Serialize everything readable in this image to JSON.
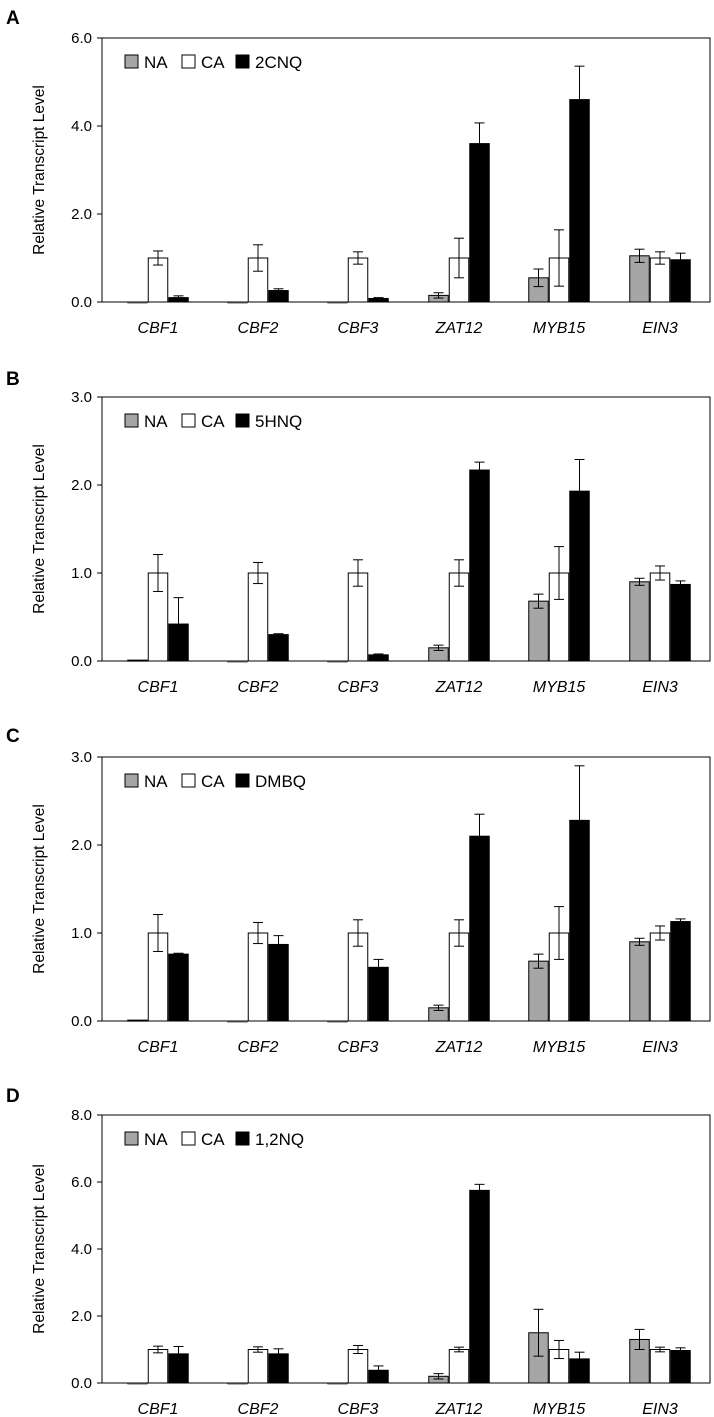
{
  "colors": {
    "NA": "#a6a6a6",
    "CA": "#ffffff",
    "treatment": "#000000",
    "axis": "#000000"
  },
  "chart_data": [
    {
      "panel": "A",
      "type": "bar",
      "categories": [
        "CBF1",
        "CBF2",
        "CBF3",
        "ZAT12",
        "MYB15",
        "EIN3"
      ],
      "ylabel": "Relative Transcript Level",
      "ylim": [
        0,
        6
      ],
      "yticks": [
        0,
        2,
        4,
        6
      ],
      "ytick_labels": [
        "0.0",
        "2.0",
        "4.0",
        "6.0"
      ],
      "legend": [
        "NA",
        "CA",
        "2CNQ"
      ],
      "series": [
        {
          "name": "NA",
          "values": [
            0.0,
            0.0,
            0.0,
            0.15,
            0.55,
            1.05
          ],
          "errors": [
            0.0,
            0.0,
            0.0,
            0.06,
            0.2,
            0.15
          ]
        },
        {
          "name": "CA",
          "values": [
            1.0,
            1.0,
            1.0,
            1.0,
            1.0,
            1.0
          ],
          "errors": [
            0.16,
            0.3,
            0.14,
            0.45,
            0.64,
            0.14
          ]
        },
        {
          "name": "2CNQ",
          "values": [
            0.1,
            0.26,
            0.08,
            3.6,
            4.6,
            0.96
          ],
          "errors": [
            0.04,
            0.04,
            0.02,
            0.47,
            0.76,
            0.15
          ]
        }
      ]
    },
    {
      "panel": "B",
      "type": "bar",
      "categories": [
        "CBF1",
        "CBF2",
        "CBF3",
        "ZAT12",
        "MYB15",
        "EIN3"
      ],
      "ylabel": "Relative Transcript Level",
      "ylim": [
        0,
        3
      ],
      "yticks": [
        0,
        1,
        2,
        3
      ],
      "ytick_labels": [
        "0.0",
        "1.0",
        "2.0",
        "3.0"
      ],
      "legend": [
        "NA",
        "CA",
        "5HNQ"
      ],
      "series": [
        {
          "name": "NA",
          "values": [
            0.01,
            0.0,
            0.0,
            0.15,
            0.68,
            0.9
          ],
          "errors": [
            0.0,
            0.0,
            0.0,
            0.03,
            0.08,
            0.04
          ]
        },
        {
          "name": "CA",
          "values": [
            1.0,
            1.0,
            1.0,
            1.0,
            1.0,
            1.0
          ],
          "errors": [
            0.21,
            0.12,
            0.15,
            0.15,
            0.3,
            0.08
          ]
        },
        {
          "name": "5HNQ",
          "values": [
            0.42,
            0.3,
            0.07,
            2.17,
            1.93,
            0.87
          ],
          "errors": [
            0.3,
            0.01,
            0.01,
            0.09,
            0.36,
            0.04
          ]
        }
      ]
    },
    {
      "panel": "C",
      "type": "bar",
      "categories": [
        "CBF1",
        "CBF2",
        "CBF3",
        "ZAT12",
        "MYB15",
        "EIN3"
      ],
      "ylabel": "Relative Transcript Level",
      "ylim": [
        0,
        3
      ],
      "yticks": [
        0,
        1,
        2,
        3
      ],
      "ytick_labels": [
        "0.0",
        "1.0",
        "2.0",
        "3.0"
      ],
      "legend": [
        "NA",
        "CA",
        "DMBQ"
      ],
      "series": [
        {
          "name": "NA",
          "values": [
            0.01,
            0.0,
            0.0,
            0.15,
            0.68,
            0.9
          ],
          "errors": [
            0.0,
            0.0,
            0.0,
            0.03,
            0.08,
            0.04
          ]
        },
        {
          "name": "CA",
          "values": [
            1.0,
            1.0,
            1.0,
            1.0,
            1.0,
            1.0
          ],
          "errors": [
            0.21,
            0.12,
            0.15,
            0.15,
            0.3,
            0.08
          ]
        },
        {
          "name": "DMBQ",
          "values": [
            0.76,
            0.87,
            0.61,
            2.1,
            2.28,
            1.13
          ],
          "errors": [
            0.01,
            0.1,
            0.09,
            0.25,
            0.62,
            0.03
          ]
        }
      ]
    },
    {
      "panel": "D",
      "type": "bar",
      "categories": [
        "CBF1",
        "CBF2",
        "CBF3",
        "ZAT12",
        "MYB15",
        "EIN3"
      ],
      "ylabel": "Relative Transcript Level",
      "ylim": [
        0,
        8
      ],
      "yticks": [
        0,
        2,
        4,
        6,
        8
      ],
      "ytick_labels": [
        "0.0",
        "2.0",
        "4.0",
        "6.0",
        "8.0"
      ],
      "legend": [
        "NA",
        "CA",
        "1,2NQ"
      ],
      "series": [
        {
          "name": "NA",
          "values": [
            0.0,
            0.0,
            0.0,
            0.2,
            1.5,
            1.3
          ],
          "errors": [
            0.0,
            0.0,
            0.0,
            0.08,
            0.7,
            0.3
          ]
        },
        {
          "name": "CA",
          "values": [
            1.0,
            1.0,
            1.0,
            1.0,
            1.0,
            1.0
          ],
          "errors": [
            0.1,
            0.08,
            0.12,
            0.07,
            0.27,
            0.07
          ]
        },
        {
          "name": "1,2NQ",
          "values": [
            0.87,
            0.87,
            0.38,
            5.75,
            0.72,
            0.97
          ],
          "errors": [
            0.22,
            0.15,
            0.13,
            0.18,
            0.2,
            0.08
          ]
        }
      ]
    }
  ]
}
